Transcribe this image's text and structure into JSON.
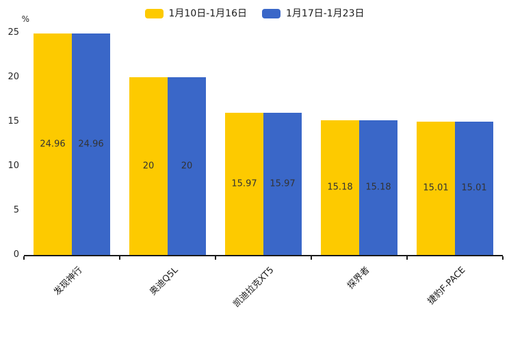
{
  "chart_data": {
    "type": "bar",
    "title": "",
    "xlabel": "",
    "ylabel": "%",
    "categories": [
      "发现神行",
      "奥迪Q5L",
      "凯迪拉克XT5",
      "探界者",
      "捷豹F-PACE"
    ],
    "series": [
      {
        "name": "1月10日-1月16日",
        "color": "#FDCA00",
        "values": [
          24.96,
          20,
          15.97,
          15.18,
          15.01
        ]
      },
      {
        "name": "1月17日-1月23日",
        "color": "#3A67C8",
        "values": [
          24.96,
          20,
          15.97,
          15.18,
          15.01
        ]
      }
    ],
    "value_labels": [
      [
        "24.96",
        "20",
        "15.97",
        "15.18",
        "15.01"
      ],
      [
        "24.96",
        "20",
        "15.97",
        "15.18",
        "15.01"
      ]
    ],
    "ylim": [
      0,
      25
    ],
    "yticks": [
      0,
      5,
      10,
      15,
      20,
      25
    ],
    "grid": false,
    "legend_position": "top-center",
    "bar_value_label_color": "#333333",
    "axis_color": "#1a1a1a"
  }
}
